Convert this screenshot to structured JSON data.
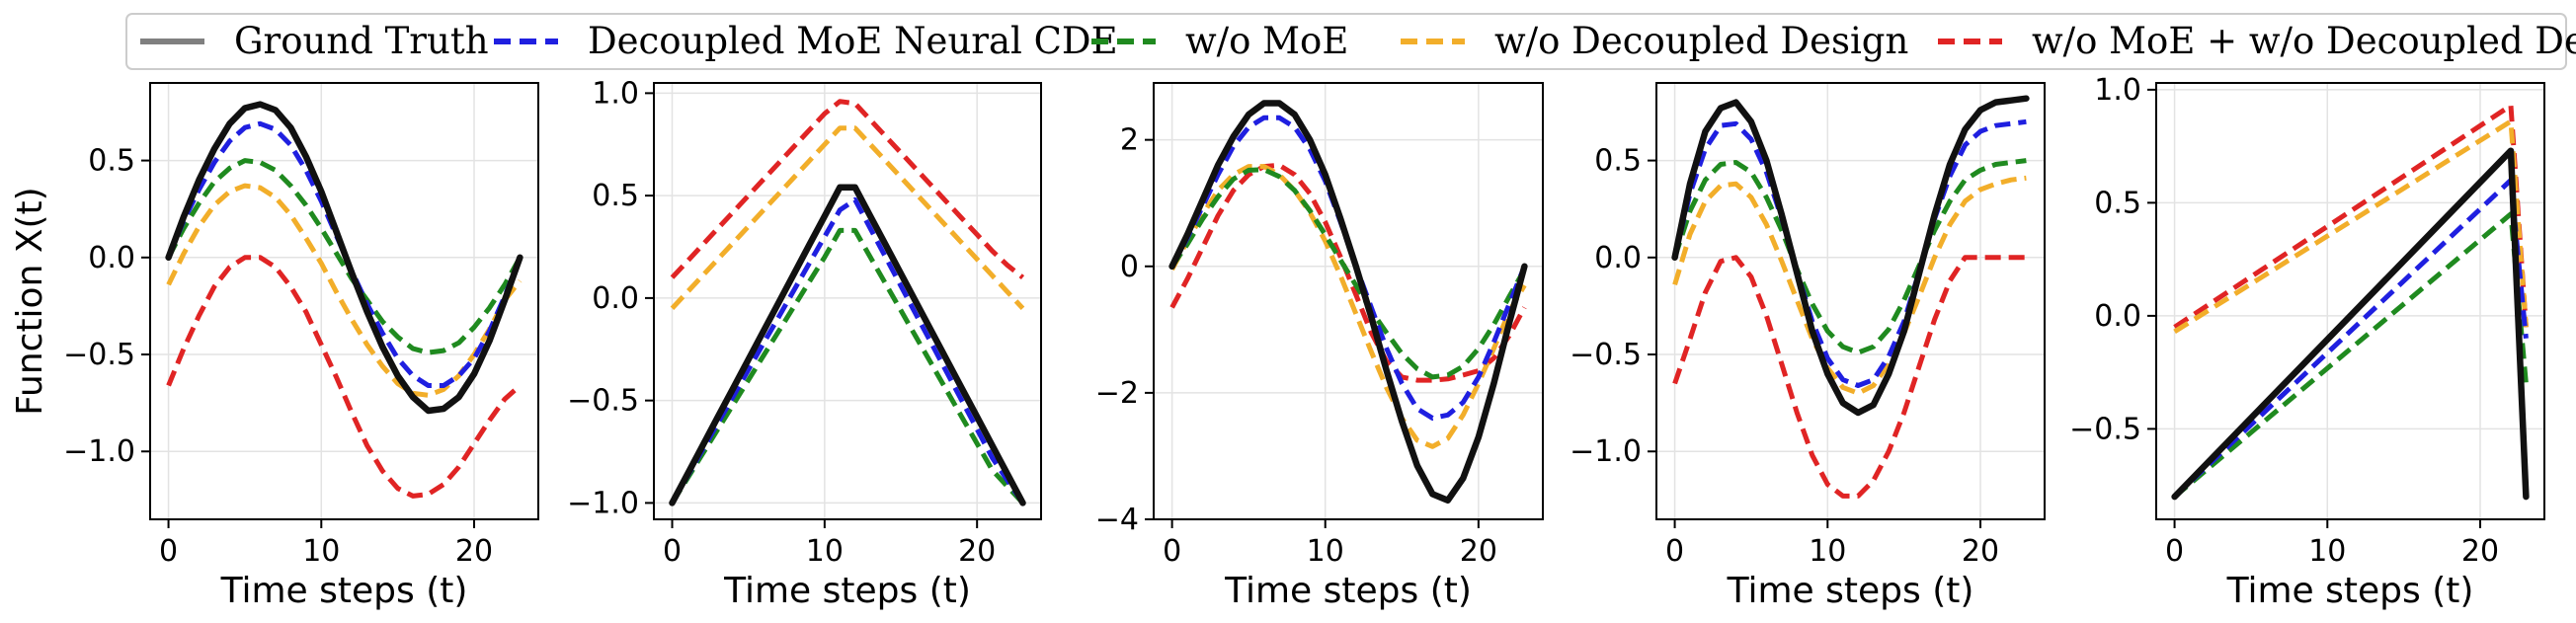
{
  "legend": {
    "items": [
      {
        "label": "Ground Truth",
        "color": "#808080",
        "dash": "solid"
      },
      {
        "label": "Decoupled MoE Neural CDE",
        "color": "#1f1fe0",
        "dash": "dashed"
      },
      {
        "label": "w/o MoE",
        "color": "#1f8a1f",
        "dash": "dashed"
      },
      {
        "label": "w/o Decoupled Design",
        "color": "#f2ae2a",
        "dash": "dashed"
      },
      {
        "label": "w/o MoE + w/o Decoupled Design",
        "color": "#e02424",
        "dash": "dashed"
      }
    ]
  },
  "colors": {
    "ground_truth": "#111111",
    "decoupled": "#1f1fe0",
    "wo_moe": "#1f8a1f",
    "wo_decoupled": "#f2ae2a",
    "wo_both": "#e02424"
  },
  "chart_data": [
    {
      "type": "line",
      "title": "",
      "xlabel": "Time steps (t)",
      "ylabel": "Function X(t)",
      "xlim": [
        -1.2,
        24.2
      ],
      "ylim": [
        -1.35,
        0.9
      ],
      "xticks": [
        0,
        10,
        20
      ],
      "xtick_labels": [
        "0",
        "10",
        "20"
      ],
      "yticks": [
        0.5,
        0.0,
        -0.5,
        -1.0
      ],
      "ytick_labels": [
        "0.5",
        "0.0",
        "−0.5",
        "−1.0"
      ],
      "x": [
        0,
        1,
        2,
        3,
        4,
        5,
        6,
        7,
        8,
        9,
        10,
        11,
        12,
        13,
        14,
        15,
        16,
        17,
        18,
        19,
        20,
        21,
        22,
        23
      ],
      "series": [
        {
          "name": "Ground Truth",
          "key": "ground_truth",
          "values": [
            0.0,
            0.21,
            0.4,
            0.56,
            0.69,
            0.77,
            0.79,
            0.76,
            0.67,
            0.52,
            0.34,
            0.13,
            -0.08,
            -0.28,
            -0.46,
            -0.61,
            -0.72,
            -0.79,
            -0.78,
            -0.72,
            -0.6,
            -0.43,
            -0.22,
            0.0
          ]
        },
        {
          "name": "Decoupled MoE Neural CDE",
          "key": "decoupled",
          "values": [
            0.0,
            0.19,
            0.35,
            0.49,
            0.6,
            0.67,
            0.69,
            0.66,
            0.58,
            0.45,
            0.29,
            0.11,
            -0.07,
            -0.24,
            -0.39,
            -0.52,
            -0.61,
            -0.66,
            -0.66,
            -0.61,
            -0.52,
            -0.38,
            -0.2,
            0.0
          ]
        },
        {
          "name": "w/o MoE",
          "key": "wo_moe",
          "values": [
            0.0,
            0.15,
            0.28,
            0.39,
            0.46,
            0.5,
            0.49,
            0.45,
            0.37,
            0.27,
            0.15,
            0.02,
            -0.11,
            -0.22,
            -0.33,
            -0.41,
            -0.47,
            -0.49,
            -0.48,
            -0.44,
            -0.36,
            -0.26,
            -0.14,
            0.0
          ]
        },
        {
          "name": "w/o Decoupled Design",
          "key": "wo_decoupled",
          "values": [
            -0.14,
            0.02,
            0.16,
            0.27,
            0.34,
            0.37,
            0.36,
            0.31,
            0.22,
            0.1,
            -0.03,
            -0.18,
            -0.32,
            -0.45,
            -0.56,
            -0.65,
            -0.7,
            -0.71,
            -0.68,
            -0.61,
            -0.5,
            -0.37,
            -0.22,
            -0.12
          ]
        },
        {
          "name": "w/o MoE + w/o Decoupled Design",
          "key": "wo_both",
          "values": [
            -0.66,
            -0.47,
            -0.3,
            -0.15,
            -0.05,
            0.0,
            0.0,
            -0.05,
            -0.15,
            -0.28,
            -0.45,
            -0.62,
            -0.8,
            -0.97,
            -1.1,
            -1.19,
            -1.23,
            -1.22,
            -1.17,
            -1.08,
            -0.96,
            -0.84,
            -0.73,
            -0.66
          ]
        }
      ]
    },
    {
      "type": "line",
      "title": "",
      "xlabel": "Time steps (t)",
      "ylabel": "",
      "xlim": [
        -1.2,
        24.2
      ],
      "ylim": [
        -1.08,
        1.05
      ],
      "xticks": [
        0,
        10,
        20
      ],
      "xtick_labels": [
        "0",
        "10",
        "20"
      ],
      "yticks": [
        1.0,
        0.5,
        0.0,
        -0.5,
        -1.0
      ],
      "ytick_labels": [
        "1.0",
        "0.5",
        "0.0",
        "−0.5",
        "−1.0"
      ],
      "x": [
        0,
        1,
        2,
        3,
        4,
        5,
        6,
        7,
        8,
        9,
        10,
        11,
        12,
        13,
        14,
        15,
        16,
        17,
        18,
        19,
        20,
        21,
        22,
        23
      ],
      "series": [
        {
          "name": "Ground Truth",
          "key": "ground_truth",
          "values": [
            -1.0,
            -0.86,
            -0.72,
            -0.58,
            -0.44,
            -0.3,
            -0.16,
            -0.02,
            0.12,
            0.26,
            0.4,
            0.54,
            0.54,
            0.4,
            0.26,
            0.12,
            -0.02,
            -0.16,
            -0.3,
            -0.44,
            -0.58,
            -0.72,
            -0.86,
            -1.0
          ]
        },
        {
          "name": "Decoupled MoE Neural CDE",
          "key": "decoupled",
          "values": [
            -1.0,
            -0.87,
            -0.74,
            -0.61,
            -0.48,
            -0.35,
            -0.22,
            -0.09,
            0.04,
            0.17,
            0.3,
            0.43,
            0.48,
            0.34,
            0.2,
            0.06,
            -0.08,
            -0.22,
            -0.36,
            -0.5,
            -0.64,
            -0.78,
            -0.89,
            -1.0
          ]
        },
        {
          "name": "w/o MoE",
          "key": "wo_moe",
          "values": [
            -1.0,
            -0.88,
            -0.76,
            -0.64,
            -0.52,
            -0.4,
            -0.28,
            -0.16,
            -0.04,
            0.08,
            0.2,
            0.33,
            0.33,
            0.2,
            0.07,
            -0.06,
            -0.19,
            -0.32,
            -0.45,
            -0.58,
            -0.71,
            -0.84,
            -0.92,
            -1.0
          ]
        },
        {
          "name": "w/o Decoupled Design",
          "key": "wo_decoupled",
          "values": [
            -0.05,
            0.03,
            0.11,
            0.19,
            0.27,
            0.35,
            0.43,
            0.51,
            0.59,
            0.67,
            0.75,
            0.83,
            0.83,
            0.75,
            0.67,
            0.59,
            0.51,
            0.43,
            0.35,
            0.27,
            0.19,
            0.11,
            0.03,
            -0.05
          ]
        },
        {
          "name": "w/o MoE + w/o Decoupled Design",
          "key": "wo_both",
          "values": [
            0.1,
            0.18,
            0.26,
            0.34,
            0.42,
            0.5,
            0.58,
            0.66,
            0.74,
            0.82,
            0.9,
            0.96,
            0.95,
            0.87,
            0.79,
            0.71,
            0.63,
            0.55,
            0.47,
            0.39,
            0.31,
            0.23,
            0.16,
            0.1
          ]
        }
      ]
    },
    {
      "type": "line",
      "title": "",
      "xlabel": "Time steps (t)",
      "ylabel": "",
      "xlim": [
        -1.2,
        24.2
      ],
      "ylim": [
        -4.0,
        2.9
      ],
      "xticks": [
        0,
        10,
        20
      ],
      "xtick_labels": [
        "0",
        "10",
        "20"
      ],
      "yticks": [
        2,
        0,
        -2,
        -4
      ],
      "ytick_labels": [
        "2",
        "0",
        "−2",
        "−4"
      ],
      "x": [
        0,
        1,
        2,
        3,
        4,
        5,
        6,
        7,
        8,
        9,
        10,
        11,
        12,
        13,
        14,
        15,
        16,
        17,
        18,
        19,
        20,
        21,
        22,
        23
      ],
      "series": [
        {
          "name": "Ground Truth",
          "key": "ground_truth",
          "values": [
            0.0,
            0.5,
            1.05,
            1.6,
            2.05,
            2.4,
            2.58,
            2.58,
            2.4,
            2.0,
            1.45,
            0.75,
            0.0,
            -0.8,
            -1.65,
            -2.45,
            -3.15,
            -3.6,
            -3.7,
            -3.35,
            -2.7,
            -1.85,
            -0.9,
            0.0
          ]
        },
        {
          "name": "Decoupled MoE Neural CDE",
          "key": "decoupled",
          "values": [
            0.0,
            0.45,
            0.95,
            1.45,
            1.9,
            2.2,
            2.35,
            2.35,
            2.2,
            1.85,
            1.35,
            0.7,
            0.0,
            -0.65,
            -1.3,
            -1.85,
            -2.25,
            -2.4,
            -2.35,
            -2.15,
            -1.75,
            -1.2,
            -0.6,
            0.0
          ]
        },
        {
          "name": "w/o MoE",
          "key": "wo_moe",
          "values": [
            0.0,
            0.35,
            0.75,
            1.1,
            1.38,
            1.52,
            1.53,
            1.42,
            1.2,
            0.88,
            0.5,
            0.1,
            -0.3,
            -0.7,
            -1.05,
            -1.38,
            -1.62,
            -1.75,
            -1.72,
            -1.58,
            -1.3,
            -0.92,
            -0.48,
            -0.05
          ]
        },
        {
          "name": "w/o Decoupled Design",
          "key": "wo_decoupled",
          "values": [
            -0.05,
            0.4,
            0.82,
            1.2,
            1.45,
            1.58,
            1.58,
            1.45,
            1.2,
            0.85,
            0.4,
            -0.15,
            -0.75,
            -1.35,
            -1.92,
            -2.4,
            -2.75,
            -2.85,
            -2.72,
            -2.35,
            -1.85,
            -1.3,
            -0.72,
            -0.3
          ]
        },
        {
          "name": "w/o MoE + w/o Decoupled Design",
          "key": "wo_both",
          "values": [
            -0.65,
            -0.2,
            0.3,
            0.8,
            1.2,
            1.45,
            1.58,
            1.6,
            1.45,
            1.15,
            0.7,
            0.15,
            -0.45,
            -1.05,
            -1.5,
            -1.75,
            -1.8,
            -1.8,
            -1.78,
            -1.72,
            -1.65,
            -1.45,
            -1.1,
            -0.65
          ]
        }
      ]
    },
    {
      "type": "line",
      "title": "",
      "xlabel": "Time steps (t)",
      "ylabel": "",
      "xlim": [
        -1.2,
        24.2
      ],
      "ylim": [
        -1.35,
        0.9
      ],
      "xticks": [
        0,
        10,
        20
      ],
      "xtick_labels": [
        "0",
        "10",
        "20"
      ],
      "yticks": [
        0.5,
        0.0,
        -0.5,
        -1.0
      ],
      "ytick_labels": [
        "0.5",
        "0.0",
        "−0.5",
        "−1.0"
      ],
      "x": [
        0,
        1,
        2,
        3,
        4,
        5,
        6,
        7,
        8,
        9,
        10,
        11,
        12,
        13,
        14,
        15,
        16,
        17,
        18,
        19,
        20,
        21,
        22,
        23
      ],
      "series": [
        {
          "name": "Ground Truth",
          "key": "ground_truth",
          "values": [
            0.0,
            0.38,
            0.65,
            0.77,
            0.8,
            0.7,
            0.5,
            0.22,
            -0.08,
            -0.38,
            -0.6,
            -0.75,
            -0.8,
            -0.76,
            -0.6,
            -0.38,
            -0.08,
            0.22,
            0.48,
            0.66,
            0.76,
            0.8,
            0.81,
            0.82
          ]
        },
        {
          "name": "Decoupled MoE Neural CDE",
          "key": "decoupled",
          "values": [
            0.0,
            0.33,
            0.56,
            0.68,
            0.69,
            0.61,
            0.44,
            0.2,
            -0.07,
            -0.33,
            -0.52,
            -0.63,
            -0.66,
            -0.63,
            -0.51,
            -0.33,
            -0.07,
            0.2,
            0.42,
            0.58,
            0.65,
            0.68,
            0.69,
            0.7
          ]
        },
        {
          "name": "w/o MoE",
          "key": "wo_moe",
          "values": [
            0.0,
            0.24,
            0.4,
            0.48,
            0.49,
            0.44,
            0.31,
            0.14,
            -0.06,
            -0.24,
            -0.38,
            -0.46,
            -0.49,
            -0.46,
            -0.37,
            -0.22,
            -0.04,
            0.14,
            0.29,
            0.4,
            0.45,
            0.48,
            0.49,
            0.5
          ]
        },
        {
          "name": "w/o Decoupled Design",
          "key": "wo_decoupled",
          "values": [
            -0.14,
            0.12,
            0.29,
            0.37,
            0.38,
            0.31,
            0.17,
            -0.02,
            -0.22,
            -0.42,
            -0.57,
            -0.67,
            -0.7,
            -0.66,
            -0.55,
            -0.39,
            -0.2,
            0.0,
            0.17,
            0.29,
            0.35,
            0.38,
            0.4,
            0.41
          ]
        },
        {
          "name": "w/o MoE + w/o Decoupled Design",
          "key": "wo_both",
          "values": [
            -0.65,
            -0.42,
            -0.18,
            -0.02,
            0.0,
            -0.1,
            -0.3,
            -0.55,
            -0.8,
            -1.02,
            -1.17,
            -1.23,
            -1.23,
            -1.15,
            -1.0,
            -0.8,
            -0.56,
            -0.32,
            -0.12,
            0.0,
            0.0,
            0.0,
            0.0,
            0.0
          ]
        }
      ]
    },
    {
      "type": "line",
      "title": "",
      "xlabel": "Time steps (t)",
      "ylabel": "",
      "xlim": [
        -1.2,
        24.2
      ],
      "ylim": [
        -0.9,
        1.03
      ],
      "xticks": [
        0,
        10,
        20
      ],
      "xtick_labels": [
        "0",
        "10",
        "20"
      ],
      "yticks": [
        1.0,
        0.5,
        0.0,
        -0.5
      ],
      "ytick_labels": [
        "1.0",
        "0.5",
        "0.0",
        "−0.5"
      ],
      "x": [
        0,
        22,
        23
      ],
      "series": [
        {
          "name": "Ground Truth",
          "key": "ground_truth",
          "values": [
            -0.8,
            0.73,
            -0.8
          ]
        },
        {
          "name": "Decoupled MoE Neural CDE",
          "key": "decoupled",
          "values": [
            -0.8,
            0.6,
            -0.1
          ]
        },
        {
          "name": "w/o MoE",
          "key": "wo_moe",
          "values": [
            -0.8,
            0.45,
            -0.3
          ]
        },
        {
          "name": "w/o Decoupled Design",
          "key": "wo_decoupled",
          "values": [
            -0.07,
            0.86,
            -0.05
          ]
        },
        {
          "name": "w/o MoE + w/o Decoupled Design",
          "key": "wo_both",
          "values": [
            -0.05,
            0.93,
            -0.05
          ]
        }
      ]
    }
  ]
}
